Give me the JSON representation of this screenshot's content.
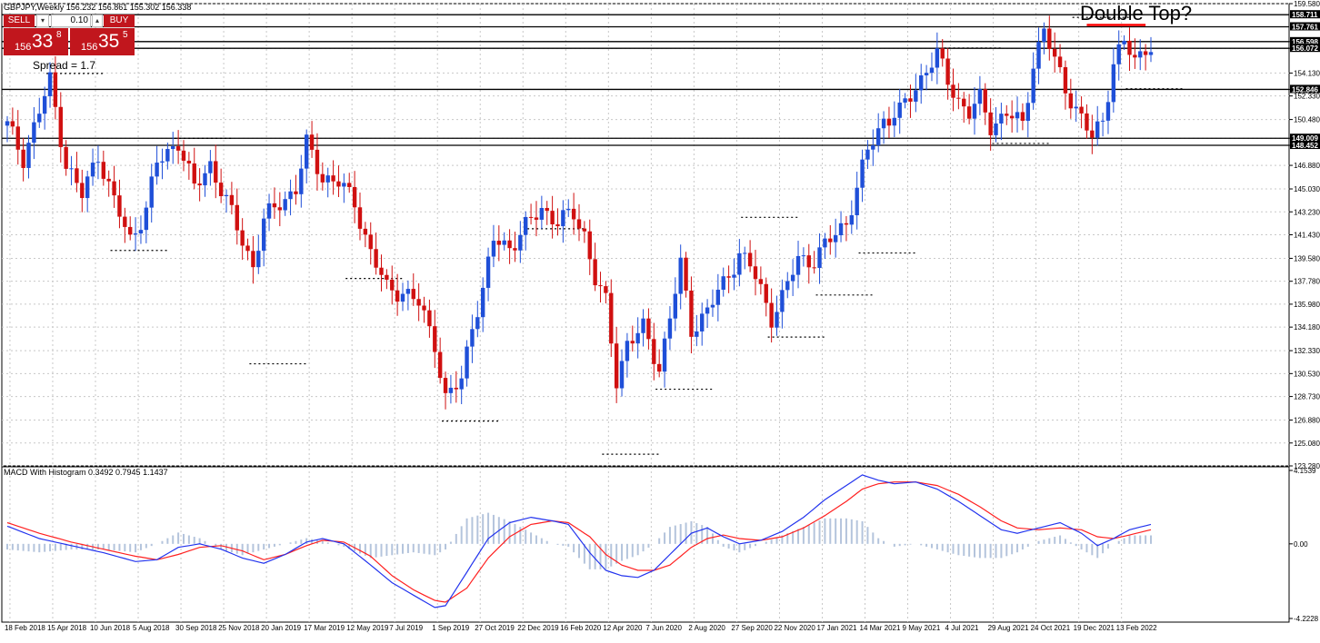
{
  "header": {
    "symbol_line": "GBPJPY,Weekly  156.232 156.861 155.302 156.338"
  },
  "trade_panel": {
    "sell_label": "SELL",
    "buy_label": "BUY",
    "volume": "0.10",
    "sell_price_big": "156",
    "sell_price_mid": "33",
    "sell_price_sup": "8",
    "buy_price_big": "156",
    "buy_price_mid": "35",
    "buy_price_sup": "5",
    "spread_text": "Spread = 1.7"
  },
  "annotation_text": "Double Top?",
  "macd_label": "MACD With Histogram 0.3492 0.7945 1.1437",
  "colors": {
    "bull": "#1f4fd8",
    "bear": "#d01010",
    "signal": "#ff2020",
    "macd": "#2233ee",
    "histogram": "#b4c4dc",
    "grid": "#c8c8c8",
    "level": "#000000",
    "highlight": "#ff0000"
  },
  "chart_data": [
    {
      "type": "candlestick",
      "title": "GBPJPY,Weekly",
      "ylim": [
        123.28,
        159.58
      ],
      "y_ticks": [
        "159.580",
        "156.598",
        "156.072",
        "154.130",
        "152.846",
        "152.330",
        "150.480",
        "149.009",
        "148.452",
        "146.880",
        "145.030",
        "143.230",
        "141.430",
        "139.580",
        "137.780",
        "135.980",
        "134.180",
        "132.330",
        "130.530",
        "128.730",
        "126.880",
        "125.080",
        "123.280"
      ],
      "x_tick_labels": [
        "18 Feb 2018",
        "15 Apr 2018",
        "10 Jun 2018",
        "5 Aug 2018",
        "30 Sep 2018",
        "25 Nov 2018",
        "20 Jan 2019",
        "17 Mar 2019",
        "12 May 2019",
        "7 Jul 2019",
        "1 Sep 2019",
        "27 Oct 2019",
        "22 Dec 2019",
        "16 Feb 2020",
        "12 Apr 2020",
        "7 Jun 2020",
        "2 Aug 2020",
        "27 Sep 2020",
        "22 Nov 2020",
        "17 Jan 2021",
        "14 Mar 2021",
        "9 May 2021",
        "4 Jul 2021",
        "29 Aug 2021",
        "24 Oct 2021",
        "19 Dec 2021",
        "13 Feb 2022"
      ],
      "axis_labels": {
        "top": "159.580",
        "level_158_711": "158.711",
        "level_157_761": "157.761",
        "level_156_598": "156.598",
        "level_156_072": "156.072",
        "level_152_846": "152.846",
        "level_149_009": "149.009",
        "level_148_452": "148.452"
      },
      "horizontal_levels": [
        158.711,
        157.761,
        156.598,
        156.072,
        152.846,
        149.009,
        148.452
      ],
      "highlight_level": 157.9,
      "anchors": [
        {
          "w": 0,
          "v": 150.0
        },
        {
          "w": 3,
          "v": 147.5
        },
        {
          "w": 8,
          "v": 153.5
        },
        {
          "w": 11,
          "v": 147.0
        },
        {
          "w": 14,
          "v": 144.5
        },
        {
          "w": 17,
          "v": 147.8
        },
        {
          "w": 20,
          "v": 144.0
        },
        {
          "w": 23,
          "v": 141.0
        },
        {
          "w": 26,
          "v": 143.5
        },
        {
          "w": 28,
          "v": 147.0
        },
        {
          "w": 32,
          "v": 148.8
        },
        {
          "w": 35,
          "v": 145.0
        },
        {
          "w": 38,
          "v": 147.0
        },
        {
          "w": 41,
          "v": 144.0
        },
        {
          "w": 43,
          "v": 142.0
        },
        {
          "w": 46,
          "v": 139.0
        },
        {
          "w": 48,
          "v": 142.5
        },
        {
          "w": 51,
          "v": 144.0
        },
        {
          "w": 54,
          "v": 145.0
        },
        {
          "w": 56,
          "v": 148.5
        },
        {
          "w": 59,
          "v": 146.0
        },
        {
          "w": 62,
          "v": 145.5
        },
        {
          "w": 65,
          "v": 144.0
        },
        {
          "w": 68,
          "v": 140.0
        },
        {
          "w": 71,
          "v": 137.2
        },
        {
          "w": 74,
          "v": 137.0
        },
        {
          "w": 77,
          "v": 136.0
        },
        {
          "w": 80,
          "v": 133.0
        },
        {
          "w": 82,
          "v": 128.5
        },
        {
          "w": 85,
          "v": 130.0
        },
        {
          "w": 87,
          "v": 134.5
        },
        {
          "w": 89,
          "v": 137.0
        },
        {
          "w": 91,
          "v": 141.0
        },
        {
          "w": 94,
          "v": 140.5
        },
        {
          "w": 97,
          "v": 142.0
        },
        {
          "w": 100,
          "v": 143.5
        },
        {
          "w": 103,
          "v": 142.5
        },
        {
          "w": 106,
          "v": 143.0
        },
        {
          "w": 108,
          "v": 141.5
        },
        {
          "w": 110,
          "v": 138.0
        },
        {
          "w": 112,
          "v": 136.0
        },
        {
          "w": 114,
          "v": 130.0
        },
        {
          "w": 116,
          "v": 133.0
        },
        {
          "w": 119,
          "v": 134.0
        },
        {
          "w": 122,
          "v": 131.0
        },
        {
          "w": 124,
          "v": 135.0
        },
        {
          "w": 126,
          "v": 139.0
        },
        {
          "w": 128,
          "v": 134.0
        },
        {
          "w": 131,
          "v": 135.5
        },
        {
          "w": 134,
          "v": 137.5
        },
        {
          "w": 137,
          "v": 140.0
        },
        {
          "w": 139,
          "v": 139.0
        },
        {
          "w": 141,
          "v": 137.0
        },
        {
          "w": 143,
          "v": 135.0
        },
        {
          "w": 145,
          "v": 136.5
        },
        {
          "w": 148,
          "v": 139.5
        },
        {
          "w": 151,
          "v": 139.5
        },
        {
          "w": 154,
          "v": 141.0
        },
        {
          "w": 157,
          "v": 142.5
        },
        {
          "w": 159,
          "v": 145.0
        },
        {
          "w": 161,
          "v": 148.0
        },
        {
          "w": 164,
          "v": 150.5
        },
        {
          "w": 167,
          "v": 151.0
        },
        {
          "w": 170,
          "v": 153.0
        },
        {
          "w": 172,
          "v": 154.5
        },
        {
          "w": 174,
          "v": 155.5
        },
        {
          "w": 176,
          "v": 153.5
        },
        {
          "w": 178,
          "v": 152.0
        },
        {
          "w": 180,
          "v": 151.0
        },
        {
          "w": 182,
          "v": 152.0
        },
        {
          "w": 184,
          "v": 150.0
        },
        {
          "w": 187,
          "v": 151.0
        },
        {
          "w": 190,
          "v": 150.0
        },
        {
          "w": 192,
          "v": 155.0
        },
        {
          "w": 194,
          "v": 157.5
        },
        {
          "w": 196,
          "v": 155.0
        },
        {
          "w": 198,
          "v": 153.0
        },
        {
          "w": 201,
          "v": 150.5
        },
        {
          "w": 203,
          "v": 149.0
        },
        {
          "w": 205,
          "v": 150.5
        },
        {
          "w": 207,
          "v": 155.0
        },
        {
          "w": 209,
          "v": 156.5
        },
        {
          "w": 211,
          "v": 155.0
        },
        {
          "w": 213,
          "v": 156.3
        },
        {
          "w": 214,
          "v": 156.3
        }
      ],
      "weeks": 215
    },
    {
      "type": "line",
      "title": "MACD With Histogram 0.3492 0.7945 1.1437",
      "ylim": [
        -4.2228,
        4.1539
      ],
      "y_ticks": [
        "4.1539",
        "0.00",
        "-4.2228"
      ],
      "series": [
        {
          "name": "MACD",
          "anchors": [
            {
              "w": 0,
              "v": 1.0
            },
            {
              "w": 6,
              "v": 0.3
            },
            {
              "w": 12,
              "v": -0.1
            },
            {
              "w": 18,
              "v": -0.5
            },
            {
              "w": 24,
              "v": -1.0
            },
            {
              "w": 28,
              "v": -0.9
            },
            {
              "w": 32,
              "v": -0.2
            },
            {
              "w": 36,
              "v": 0.0
            },
            {
              "w": 40,
              "v": -0.3
            },
            {
              "w": 44,
              "v": -0.8
            },
            {
              "w": 48,
              "v": -1.1
            },
            {
              "w": 52,
              "v": -0.6
            },
            {
              "w": 56,
              "v": 0.1
            },
            {
              "w": 59,
              "v": 0.3
            },
            {
              "w": 63,
              "v": 0.0
            },
            {
              "w": 68,
              "v": -1.2
            },
            {
              "w": 72,
              "v": -2.2
            },
            {
              "w": 76,
              "v": -2.9
            },
            {
              "w": 80,
              "v": -3.6
            },
            {
              "w": 82,
              "v": -3.5
            },
            {
              "w": 86,
              "v": -1.6
            },
            {
              "w": 90,
              "v": 0.3
            },
            {
              "w": 94,
              "v": 1.2
            },
            {
              "w": 98,
              "v": 1.5
            },
            {
              "w": 102,
              "v": 1.3
            },
            {
              "w": 105,
              "v": 1.1
            },
            {
              "w": 109,
              "v": -0.5
            },
            {
              "w": 112,
              "v": -1.5
            },
            {
              "w": 115,
              "v": -1.8
            },
            {
              "w": 118,
              "v": -1.9
            },
            {
              "w": 121,
              "v": -1.5
            },
            {
              "w": 124,
              "v": -0.6
            },
            {
              "w": 128,
              "v": 0.6
            },
            {
              "w": 131,
              "v": 0.9
            },
            {
              "w": 134,
              "v": 0.4
            },
            {
              "w": 137,
              "v": 0.0
            },
            {
              "w": 141,
              "v": 0.2
            },
            {
              "w": 145,
              "v": 0.7
            },
            {
              "w": 149,
              "v": 1.5
            },
            {
              "w": 153,
              "v": 2.5
            },
            {
              "w": 157,
              "v": 3.3
            },
            {
              "w": 160,
              "v": 3.9
            },
            {
              "w": 163,
              "v": 3.6
            },
            {
              "w": 166,
              "v": 3.4
            },
            {
              "w": 170,
              "v": 3.5
            },
            {
              "w": 174,
              "v": 3.1
            },
            {
              "w": 178,
              "v": 2.4
            },
            {
              "w": 182,
              "v": 1.6
            },
            {
              "w": 186,
              "v": 0.8
            },
            {
              "w": 189,
              "v": 0.6
            },
            {
              "w": 193,
              "v": 0.9
            },
            {
              "w": 197,
              "v": 1.2
            },
            {
              "w": 201,
              "v": 0.6
            },
            {
              "w": 204,
              "v": -0.1
            },
            {
              "w": 207,
              "v": 0.3
            },
            {
              "w": 210,
              "v": 0.8
            },
            {
              "w": 214,
              "v": 1.1
            }
          ]
        },
        {
          "name": "Signal",
          "anchors": [
            {
              "w": 0,
              "v": 1.2
            },
            {
              "w": 6,
              "v": 0.6
            },
            {
              "w": 12,
              "v": 0.1
            },
            {
              "w": 18,
              "v": -0.3
            },
            {
              "w": 24,
              "v": -0.7
            },
            {
              "w": 28,
              "v": -0.9
            },
            {
              "w": 32,
              "v": -0.6
            },
            {
              "w": 36,
              "v": -0.2
            },
            {
              "w": 40,
              "v": -0.1
            },
            {
              "w": 44,
              "v": -0.4
            },
            {
              "w": 48,
              "v": -0.9
            },
            {
              "w": 52,
              "v": -0.6
            },
            {
              "w": 56,
              "v": -0.1
            },
            {
              "w": 59,
              "v": 0.2
            },
            {
              "w": 63,
              "v": 0.1
            },
            {
              "w": 68,
              "v": -0.7
            },
            {
              "w": 72,
              "v": -1.8
            },
            {
              "w": 76,
              "v": -2.6
            },
            {
              "w": 80,
              "v": -3.2
            },
            {
              "w": 82,
              "v": -3.3
            },
            {
              "w": 86,
              "v": -2.5
            },
            {
              "w": 90,
              "v": -0.8
            },
            {
              "w": 94,
              "v": 0.4
            },
            {
              "w": 98,
              "v": 1.1
            },
            {
              "w": 102,
              "v": 1.3
            },
            {
              "w": 105,
              "v": 1.2
            },
            {
              "w": 109,
              "v": 0.4
            },
            {
              "w": 112,
              "v": -0.6
            },
            {
              "w": 115,
              "v": -1.2
            },
            {
              "w": 118,
              "v": -1.5
            },
            {
              "w": 121,
              "v": -1.5
            },
            {
              "w": 124,
              "v": -1.2
            },
            {
              "w": 128,
              "v": -0.2
            },
            {
              "w": 131,
              "v": 0.3
            },
            {
              "w": 134,
              "v": 0.5
            },
            {
              "w": 137,
              "v": 0.3
            },
            {
              "w": 141,
              "v": 0.2
            },
            {
              "w": 145,
              "v": 0.4
            },
            {
              "w": 149,
              "v": 0.9
            },
            {
              "w": 153,
              "v": 1.6
            },
            {
              "w": 157,
              "v": 2.4
            },
            {
              "w": 160,
              "v": 3.1
            },
            {
              "w": 163,
              "v": 3.4
            },
            {
              "w": 166,
              "v": 3.5
            },
            {
              "w": 170,
              "v": 3.5
            },
            {
              "w": 174,
              "v": 3.3
            },
            {
              "w": 178,
              "v": 2.8
            },
            {
              "w": 182,
              "v": 2.1
            },
            {
              "w": 186,
              "v": 1.3
            },
            {
              "w": 189,
              "v": 0.9
            },
            {
              "w": 193,
              "v": 0.8
            },
            {
              "w": 197,
              "v": 0.9
            },
            {
              "w": 201,
              "v": 0.8
            },
            {
              "w": 204,
              "v": 0.4
            },
            {
              "w": 207,
              "v": 0.3
            },
            {
              "w": 210,
              "v": 0.5
            },
            {
              "w": 214,
              "v": 0.8
            }
          ]
        }
      ]
    }
  ]
}
